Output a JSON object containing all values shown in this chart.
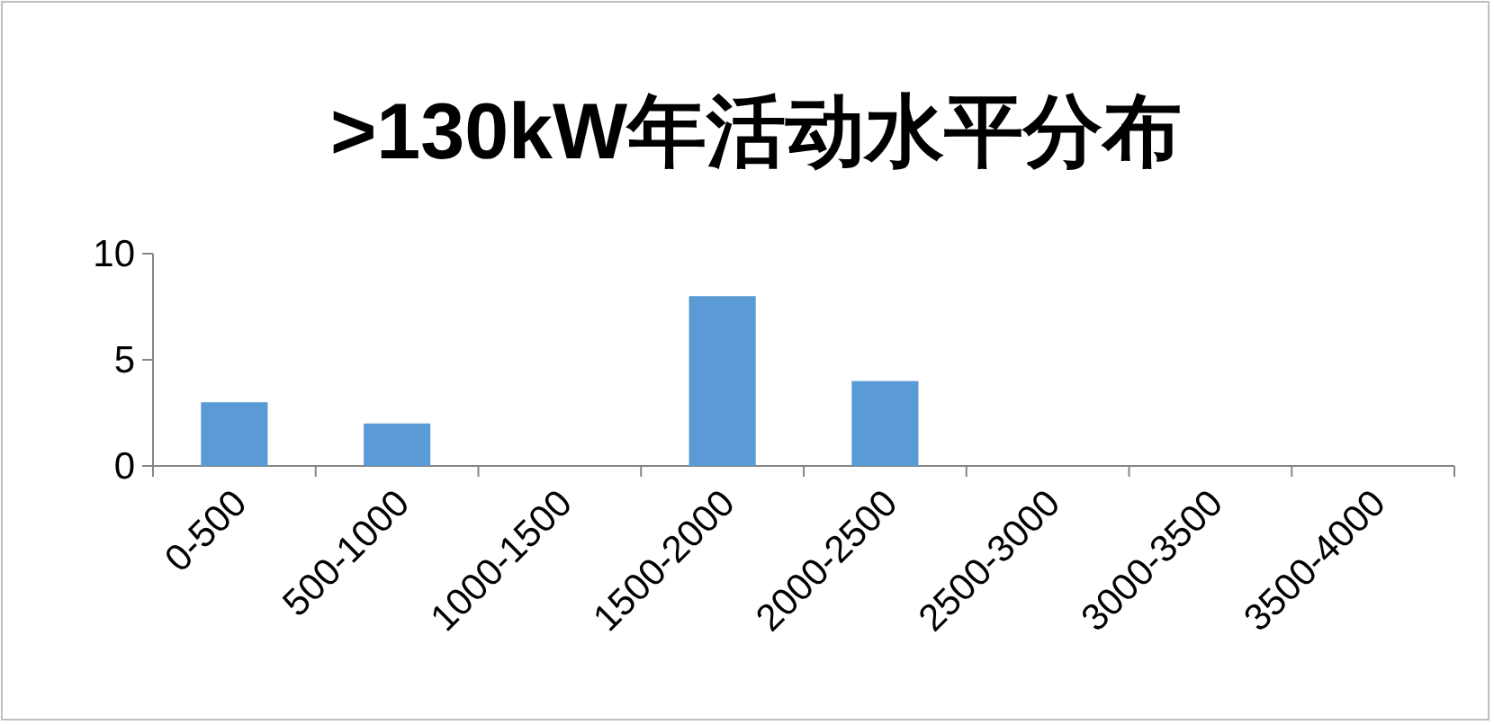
{
  "chart_data": {
    "type": "bar",
    "title": ">130kW年活动水平分布",
    "categories": [
      "0-500",
      "500-1000",
      "1000-1500",
      "1500-2000",
      "2000-2500",
      "2500-3000",
      "3000-3500",
      "3500-4000"
    ],
    "values": [
      3,
      2,
      0,
      8,
      4,
      0,
      0,
      0
    ],
    "color": "#5b9bd5",
    "ylim": [
      0,
      10
    ],
    "yticks": [
      0,
      5,
      10
    ],
    "grid": false,
    "legend": false
  }
}
